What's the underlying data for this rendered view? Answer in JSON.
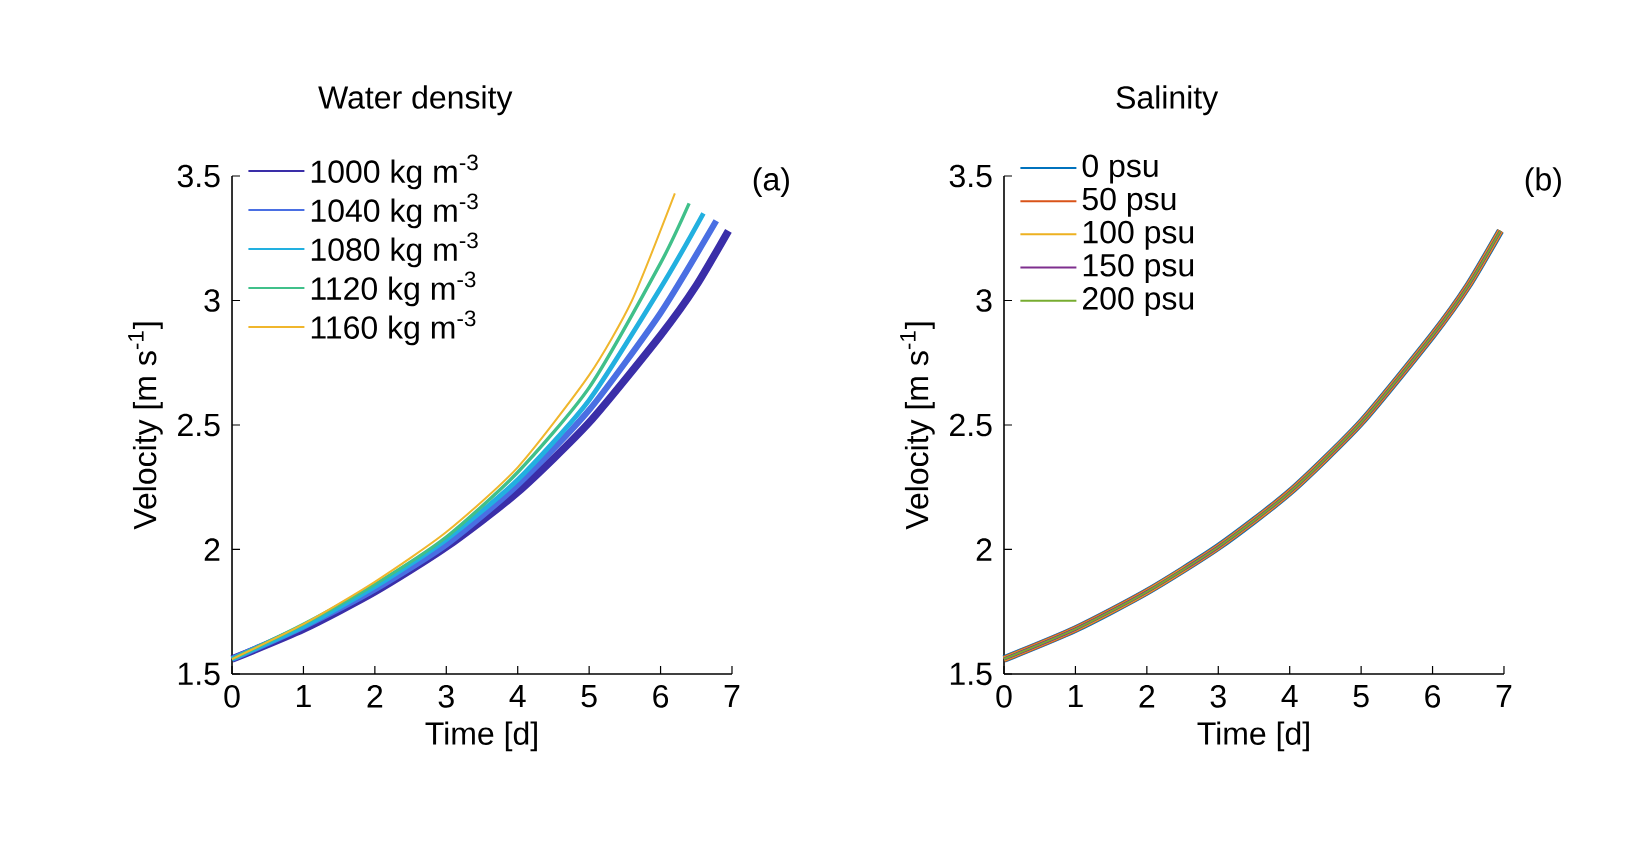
{
  "chart_data": [
    {
      "type": "line",
      "xlabel": "Time [d]",
      "ylabel": "Velocity [m s$^{-1}$]",
      "legend_title": "Water density",
      "legend": "top left",
      "annotations": [
        "(a)"
      ],
      "xlim": [
        0,
        7
      ],
      "ylim": [
        1.5,
        3.5
      ],
      "xticks": [
        0,
        1,
        2,
        3,
        4,
        5,
        6,
        7
      ],
      "yticks": [
        1.5,
        2,
        2.5,
        3,
        3.5
      ],
      "series": [
        {
          "name": "1000 kg m$^{-3}$",
          "color": "#3a2ea8",
          "x": [
            0,
            1,
            2,
            3,
            4,
            5,
            6,
            6.5,
            6.95
          ],
          "values": [
            1.56,
            1.68,
            1.83,
            2.01,
            2.23,
            2.51,
            2.86,
            3.06,
            3.28
          ]
        },
        {
          "name": "1040 kg m$^{-3}$",
          "color": "#4a6fe3",
          "x": [
            0,
            1,
            2,
            3,
            4,
            5,
            6,
            6.78
          ],
          "values": [
            1.56,
            1.69,
            1.84,
            2.02,
            2.26,
            2.56,
            2.95,
            3.32
          ]
        },
        {
          "name": "1080 kg m$^{-3}$",
          "color": "#22b0e0",
          "x": [
            0,
            1,
            2,
            3,
            4,
            5,
            6,
            6.6
          ],
          "values": [
            1.56,
            1.69,
            1.85,
            2.04,
            2.28,
            2.6,
            3.05,
            3.35
          ]
        },
        {
          "name": "1120 kg m$^{-3}$",
          "color": "#40c08a",
          "x": [
            0,
            1,
            2,
            3,
            4,
            5,
            6,
            6.4
          ],
          "values": [
            1.56,
            1.7,
            1.86,
            2.05,
            2.31,
            2.65,
            3.15,
            3.39
          ]
        },
        {
          "name": "1160 kg m$^{-3}$",
          "color": "#f0b62c",
          "x": [
            0,
            1,
            2,
            3,
            4,
            5,
            5.6,
            6.2
          ],
          "values": [
            1.56,
            1.7,
            1.87,
            2.07,
            2.33,
            2.7,
            3.0,
            3.43
          ]
        }
      ]
    },
    {
      "type": "line",
      "xlabel": "Time [d]",
      "ylabel": "Velocity [m s$^{-1}$]",
      "legend_title": "Salinity",
      "legend": "top left",
      "annotations": [
        "(b)"
      ],
      "xlim": [
        0,
        7
      ],
      "ylim": [
        1.5,
        3.5
      ],
      "xticks": [
        0,
        1,
        2,
        3,
        4,
        5,
        6,
        7
      ],
      "yticks": [
        1.5,
        2,
        2.5,
        3,
        3.5
      ],
      "series": [
        {
          "name": "0 psu",
          "color": "#0072bd",
          "x": [
            0,
            1,
            2,
            3,
            4,
            5,
            6,
            6.5,
            6.95
          ],
          "values": [
            1.56,
            1.68,
            1.83,
            2.01,
            2.23,
            2.51,
            2.86,
            3.06,
            3.28
          ]
        },
        {
          "name": "50 psu",
          "color": "#d95319",
          "x": [
            0,
            1,
            2,
            3,
            4,
            5,
            6,
            6.5,
            6.95
          ],
          "values": [
            1.56,
            1.68,
            1.83,
            2.01,
            2.23,
            2.51,
            2.86,
            3.06,
            3.28
          ]
        },
        {
          "name": "100 psu",
          "color": "#edb120",
          "x": [
            0,
            1,
            2,
            3,
            4,
            5,
            6,
            6.5,
            6.95
          ],
          "values": [
            1.56,
            1.68,
            1.83,
            2.01,
            2.23,
            2.51,
            2.86,
            3.06,
            3.28
          ]
        },
        {
          "name": "150 psu",
          "color": "#7e2f8e",
          "x": [
            0,
            1,
            2,
            3,
            4,
            5,
            6,
            6.5,
            6.95
          ],
          "values": [
            1.56,
            1.68,
            1.83,
            2.01,
            2.23,
            2.51,
            2.86,
            3.06,
            3.28
          ]
        },
        {
          "name": "200 psu",
          "color": "#77ac30",
          "x": [
            0,
            1,
            2,
            3,
            4,
            5,
            6,
            6.5,
            6.95
          ],
          "values": [
            1.56,
            1.68,
            1.83,
            2.01,
            2.23,
            2.51,
            2.86,
            3.06,
            3.28
          ]
        }
      ]
    }
  ]
}
